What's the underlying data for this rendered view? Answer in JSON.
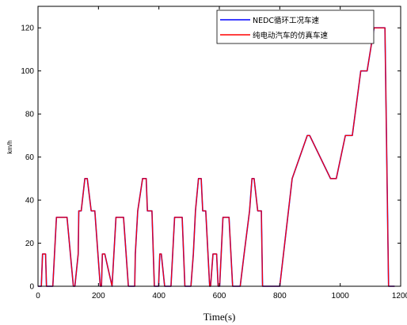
{
  "chart_data": {
    "type": "line",
    "title": "",
    "xlabel": "Time(s)",
    "ylabel": "km/h",
    "xlim": [
      0,
      1200
    ],
    "ylim": [
      0,
      130
    ],
    "xticks": [
      0,
      200,
      400,
      600,
      800,
      1000,
      1200
    ],
    "xtick_labels": [
      "0",
      "200",
      "400",
      "600",
      "800",
      "1000",
      "1200"
    ],
    "yticks": [
      0,
      20,
      40,
      60,
      80,
      100,
      120
    ],
    "ytick_labels": [
      "0",
      "20",
      "40",
      "60",
      "80",
      "100",
      "120"
    ],
    "grid": false,
    "legend_position": "top-right",
    "series": [
      {
        "name": "NEDC循环工况车速",
        "color": "#0000ff",
        "x": [
          0,
          11,
          15,
          23,
          25,
          28,
          49,
          61,
          85,
          96,
          117,
          122,
          133,
          135,
          143,
          155,
          163,
          176,
          178,
          188,
          206,
          210,
          213,
          221,
          245,
          258,
          279,
          283,
          299,
          320,
          322,
          330,
          346,
          358,
          362,
          375,
          377,
          385,
          399,
          403,
          408,
          419,
          440,
          452,
          477,
          486,
          506,
          514,
          521,
          531,
          540,
          545,
          555,
          568,
          571,
          579,
          591,
          596,
          601,
          612,
          632,
          644,
          669,
          682,
          700,
          708,
          715,
          727,
          739,
          743,
          750,
          763,
          767,
          779,
          800,
          841,
          891,
          899,
          968,
          987,
          1017,
          1040,
          1068,
          1089,
          1112,
          1123,
          1148,
          1160,
          1180
        ],
        "y": [
          0,
          0,
          15,
          15,
          15,
          0,
          0,
          32,
          32,
          32,
          0,
          0,
          15,
          35,
          35,
          50,
          50,
          35,
          35,
          35,
          0,
          0,
          15,
          15,
          0,
          32,
          32,
          32,
          0,
          0,
          15,
          35,
          50,
          50,
          35,
          35,
          35,
          0,
          0,
          15,
          15,
          0,
          0,
          32,
          32,
          0,
          0,
          15,
          35,
          50,
          50,
          35,
          35,
          0,
          0,
          15,
          15,
          0,
          0,
          32,
          32,
          0,
          0,
          15,
          35,
          50,
          50,
          35,
          35,
          0,
          0,
          0,
          0,
          0,
          0,
          50,
          70,
          70,
          50,
          50,
          70,
          70,
          100,
          100,
          120,
          120,
          120,
          0,
          0
        ]
      },
      {
        "name": "纯电动汽车的仿真车速",
        "color": "#ff0000",
        "x": [
          0,
          11,
          15,
          23,
          25,
          28,
          49,
          61,
          85,
          96,
          117,
          122,
          133,
          135,
          143,
          155,
          163,
          176,
          178,
          188,
          206,
          210,
          213,
          221,
          245,
          258,
          279,
          283,
          299,
          320,
          322,
          330,
          346,
          358,
          362,
          375,
          377,
          385,
          399,
          403,
          408,
          419,
          440,
          452,
          477,
          486,
          506,
          514,
          521,
          531,
          540,
          545,
          555,
          568,
          571,
          579,
          591,
          596,
          601,
          612,
          632,
          644,
          669,
          682,
          700,
          708,
          715,
          727,
          739,
          743,
          750,
          763,
          767,
          779,
          800,
          841,
          891,
          899,
          968,
          987,
          1017,
          1040,
          1068,
          1089,
          1112,
          1123,
          1148,
          1160,
          1180
        ],
        "y": [
          0,
          0,
          15,
          15,
          15,
          0,
          0,
          32,
          32,
          32,
          0,
          0,
          15,
          35,
          35,
          50,
          50,
          35,
          35,
          35,
          0,
          0,
          15,
          15,
          0,
          32,
          32,
          32,
          0,
          0,
          15,
          35,
          50,
          50,
          35,
          35,
          35,
          0,
          0,
          15,
          15,
          0,
          0,
          32,
          32,
          0,
          0,
          15,
          35,
          50,
          50,
          35,
          35,
          0,
          0,
          15,
          15,
          0,
          0,
          32,
          32,
          0,
          0,
          15,
          35,
          50,
          50,
          35,
          35,
          0,
          0,
          0,
          0,
          0,
          0,
          50,
          70,
          70,
          50,
          50,
          70,
          70,
          100,
          100,
          120,
          120,
          120,
          0,
          0
        ]
      }
    ]
  }
}
